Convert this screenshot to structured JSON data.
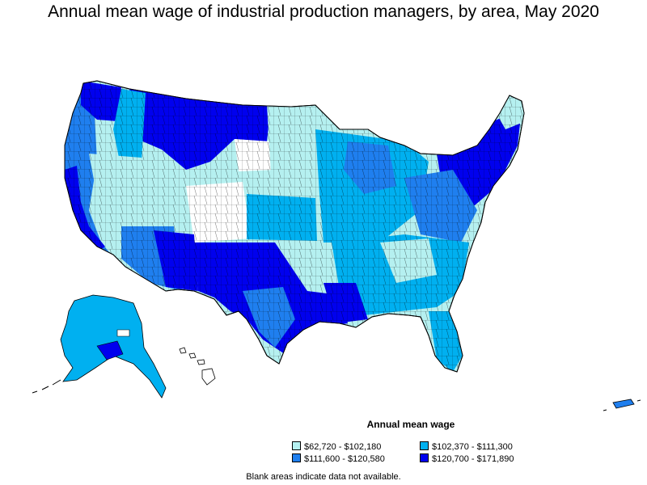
{
  "title": "Annual mean wage of industrial production managers, by area, May 2020",
  "legend": {
    "title": "Annual mean wage",
    "items": [
      {
        "label": "$62,720 - $102,180",
        "color": "#b5f0f0"
      },
      {
        "label": "$102,370 - $111,300",
        "color": "#00b0f0"
      },
      {
        "label": "$111,600 - $120,580",
        "color": "#1f7fef"
      },
      {
        "label": "$120,700 - $171,890",
        "color": "#0000ee"
      }
    ]
  },
  "note": "Blank areas indicate data not available."
}
